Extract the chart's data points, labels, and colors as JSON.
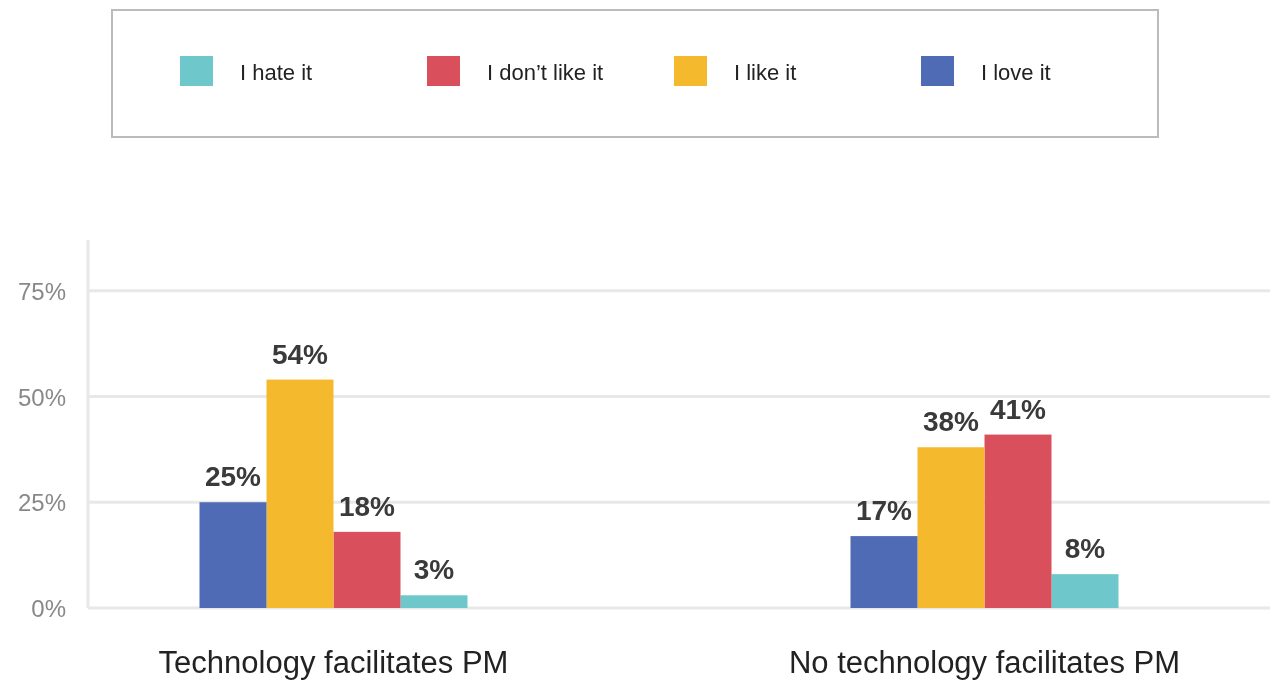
{
  "chart_data": {
    "type": "bar",
    "categories": [
      "Technology facilitates PM",
      "No technology facilitates PM"
    ],
    "series": [
      {
        "name": "I hate it",
        "color": "#6ec8cb",
        "values": [
          3,
          8
        ],
        "value_labels": [
          "3%",
          "8%"
        ]
      },
      {
        "name": "I don’t like it",
        "color": "#d94f5c",
        "values": [
          18,
          41
        ],
        "value_labels": [
          "18%",
          "41%"
        ]
      },
      {
        "name": "I like it",
        "color": "#f5b92e",
        "values": [
          54,
          38
        ],
        "value_labels": [
          "54%",
          "38%"
        ]
      },
      {
        "name": "I love it",
        "color": "#4f6bb5",
        "values": [
          25,
          17
        ],
        "value_labels": [
          "25%",
          "17%"
        ]
      }
    ],
    "ylim": [
      0,
      87
    ],
    "yticks": [
      {
        "value": 0,
        "label": "0%"
      },
      {
        "value": 25,
        "label": "25%"
      },
      {
        "value": 50,
        "label": "50%"
      },
      {
        "value": 75,
        "label": "75%"
      }
    ],
    "grid": "y",
    "legend": "top"
  }
}
